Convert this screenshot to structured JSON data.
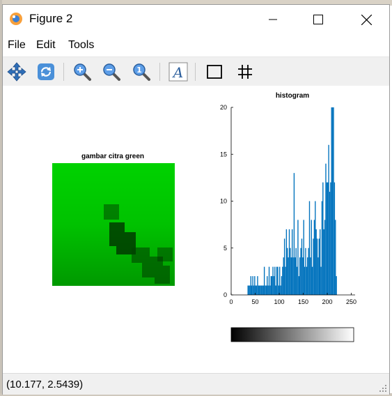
{
  "window": {
    "title": "Figure 2",
    "minimize_glyph": "—",
    "maximize_glyph": "☐",
    "close_glyph": "✕"
  },
  "menu": {
    "items": [
      {
        "label": "File"
      },
      {
        "label": "Edit"
      },
      {
        "label": "Tools"
      }
    ]
  },
  "toolbar": {
    "buttons": [
      {
        "icon": "pan-icon"
      },
      {
        "icon": "rotate-icon"
      },
      {
        "icon": "zoom-in-icon"
      },
      {
        "icon": "zoom-out-icon"
      },
      {
        "icon": "zoom-reset-icon"
      },
      {
        "icon": "text-icon"
      },
      {
        "icon": "box-icon"
      },
      {
        "icon": "grid-icon"
      }
    ],
    "text_glyph": "A",
    "reset_glyph": "1"
  },
  "image_panel": {
    "title": "gambar citra green"
  },
  "histogram": {
    "title": "histogram",
    "colors": {
      "bar": "#0072bd"
    }
  },
  "status": {
    "coords": "(10.177, 2.5439)"
  },
  "chart_data": {
    "type": "bar",
    "title": "histogram",
    "xlim": [
      0,
      255
    ],
    "ylim": [
      0,
      20
    ],
    "x_ticks": [
      0,
      50,
      100,
      150,
      200,
      250
    ],
    "y_ticks": [
      0,
      5,
      10,
      15,
      20
    ],
    "x": [
      35,
      37,
      39,
      41,
      43,
      45,
      47,
      49,
      51,
      53,
      55,
      57,
      59,
      61,
      63,
      65,
      67,
      69,
      71,
      73,
      75,
      77,
      79,
      81,
      83,
      85,
      87,
      89,
      91,
      93,
      95,
      97,
      99,
      101,
      103,
      105,
      107,
      109,
      111,
      113,
      115,
      117,
      119,
      121,
      123,
      125,
      127,
      129,
      131,
      133,
      135,
      137,
      139,
      141,
      143,
      145,
      147,
      149,
      151,
      153,
      155,
      157,
      159,
      161,
      163,
      165,
      167,
      169,
      171,
      173,
      175,
      177,
      179,
      181,
      183,
      185,
      187,
      189,
      191,
      193,
      195,
      197,
      199,
      201,
      203,
      205,
      207,
      209,
      211,
      213,
      215,
      217,
      219
    ],
    "values": [
      1,
      1,
      1,
      2,
      1,
      2,
      1,
      2,
      1,
      1,
      2,
      1,
      1,
      1,
      1,
      1,
      1,
      3,
      1,
      1,
      2,
      1,
      3,
      1,
      2,
      2,
      3,
      2,
      3,
      1,
      3,
      3,
      1,
      3,
      1,
      2,
      3,
      4,
      6,
      3,
      7,
      5,
      4,
      7,
      5,
      4,
      7,
      4,
      13,
      4,
      5,
      3,
      8,
      2,
      4,
      5,
      6,
      4,
      8,
      3,
      5,
      3,
      4,
      5,
      10,
      4,
      8,
      3,
      6,
      8,
      10,
      7,
      6,
      4,
      6,
      7,
      3,
      10,
      12,
      7,
      8,
      14,
      12,
      12,
      16,
      11,
      12,
      20,
      20,
      20,
      12,
      8,
      2
    ],
    "colormap_bar": {
      "type": "grayscale",
      "range": [
        0,
        255
      ]
    }
  }
}
